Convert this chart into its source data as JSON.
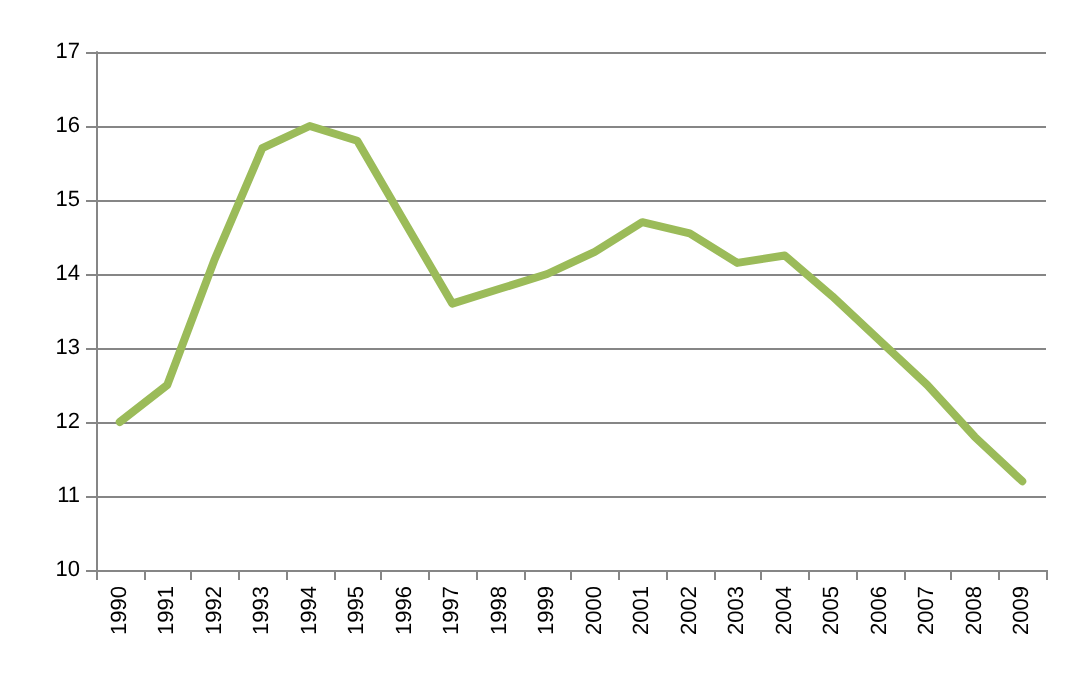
{
  "chart_data": {
    "type": "line",
    "categories": [
      "1990",
      "1991",
      "1992",
      "1993",
      "1994",
      "1995",
      "1996",
      "1997",
      "1998",
      "1999",
      "2000",
      "2001",
      "2002",
      "2003",
      "2004",
      "2005",
      "2006",
      "2007",
      "2008",
      "2009"
    ],
    "series": [
      {
        "color": "#9bbb59",
        "values": [
          12.0,
          12.5,
          14.2,
          15.7,
          16.0,
          15.8,
          14.7,
          13.6,
          13.8,
          14.0,
          14.3,
          14.7,
          14.55,
          14.15,
          14.25,
          13.7,
          13.1,
          12.5,
          11.8,
          11.2
        ]
      }
    ],
    "ylim": [
      10,
      17
    ],
    "yticks": [
      10,
      11,
      12,
      13,
      14,
      15,
      16,
      17
    ],
    "grid": "y",
    "marker": "none",
    "line_style": "solid"
  }
}
